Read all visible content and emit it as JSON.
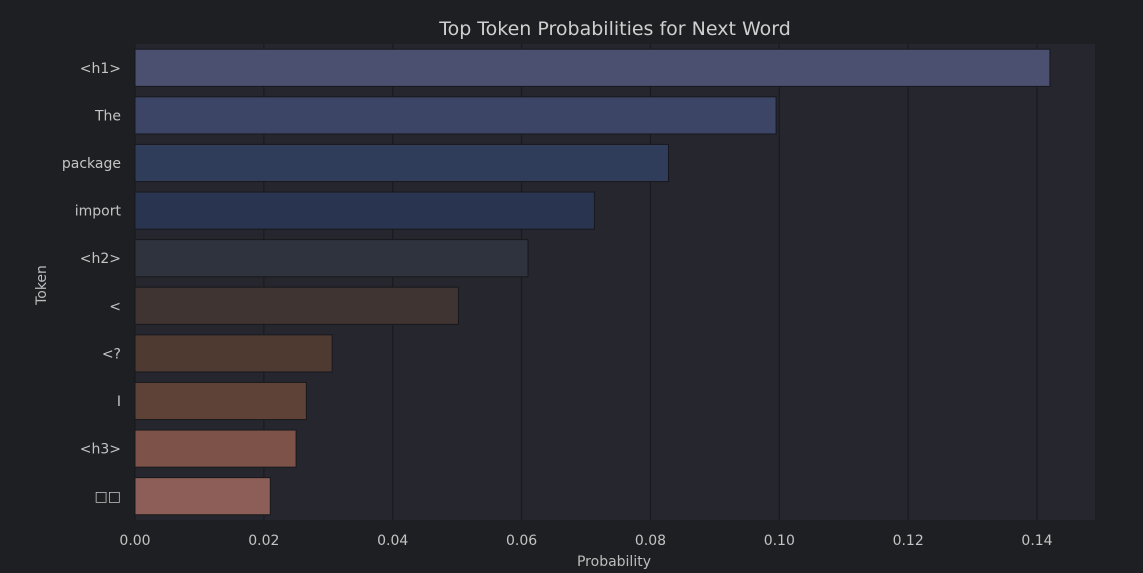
{
  "chart_data": {
    "type": "bar",
    "orientation": "horizontal",
    "title": "Top Token Probabilities for Next Word",
    "xlabel": "Probability",
    "ylabel": "Token",
    "xlim": [
      0,
      0.149
    ],
    "xticks": [
      "0.00",
      "0.02",
      "0.04",
      "0.06",
      "0.08",
      "0.10",
      "0.12",
      "0.14"
    ],
    "grid": true,
    "categories": [
      "<h1>",
      "The",
      "package",
      "import",
      "<h2>",
      "<",
      "<?",
      "I",
      "<h3>",
      "□□"
    ],
    "values": [
      0.142,
      0.0995,
      0.0828,
      0.0713,
      0.061,
      0.0502,
      0.0306,
      0.0266,
      0.025,
      0.021
    ],
    "colors": [
      "#4b5070",
      "#3c4566",
      "#2f3c5a",
      "#293550",
      "#2e333e",
      "#3f3432",
      "#4e3a31",
      "#5e4238",
      "#7d5349",
      "#8c5e57"
    ]
  },
  "colors": {
    "page_background": "#1e1f22",
    "plot_background": "#25262e",
    "grid": "#1a1b1f",
    "bar_edge": "#18191c"
  }
}
